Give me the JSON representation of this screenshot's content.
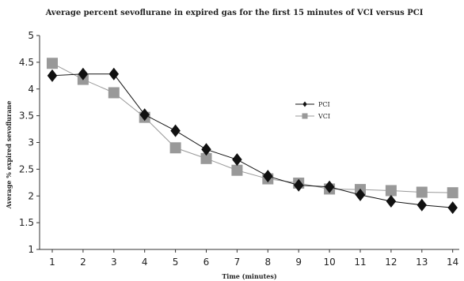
{
  "chart_data": {
    "type": "line",
    "title": "Average percent sevoflurane in expired gas for the first 15 minutes of VCI versus PCI",
    "xlabel": "Time (minutes)",
    "ylabel": "Average % expired sevoflurane",
    "categories": [
      "1",
      "2",
      "3",
      "4",
      "5",
      "6",
      "7",
      "8",
      "9",
      "10",
      "11",
      "12",
      "13",
      "14"
    ],
    "ylim": [
      1,
      5
    ],
    "yticks": [
      "1",
      "1.5",
      "2",
      "2.5",
      "3",
      "3.5",
      "4",
      "4.5",
      "5"
    ],
    "grid": false,
    "legend_position": "right",
    "series": [
      {
        "name": "PCI",
        "color": "#111111",
        "marker": "diamond",
        "values": [
          4.25,
          4.28,
          4.28,
          3.52,
          3.22,
          2.87,
          2.68,
          2.37,
          2.2,
          2.17,
          2.02,
          1.9,
          1.83,
          1.78
        ]
      },
      {
        "name": "VCI",
        "color": "#999999",
        "marker": "square",
        "values": [
          4.48,
          4.18,
          3.93,
          3.47,
          2.9,
          2.7,
          2.48,
          2.32,
          2.24,
          2.13,
          2.12,
          2.1,
          2.07,
          2.06
        ]
      }
    ]
  }
}
